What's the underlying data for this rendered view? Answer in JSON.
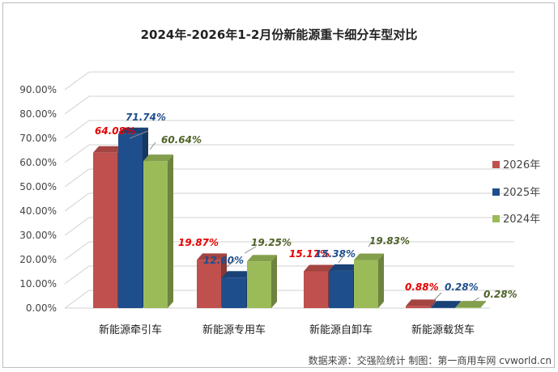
{
  "chart_data": {
    "type": "bar",
    "title": "2024年-2026年1-2月份新能源重卡细分车型对比",
    "categories": [
      "新能源牵引车",
      "新能源专用车",
      "新能源自卸车",
      "新能源载货车"
    ],
    "series": [
      {
        "name": "2026年",
        "values": [
          64.08,
          19.87,
          15.17,
          0.88
        ],
        "labels": [
          "64.08%",
          "19.87%",
          "15.17%",
          "0.88%"
        ],
        "color": "#c0504d",
        "label_color": "#e60000"
      },
      {
        "name": "2025年",
        "values": [
          71.74,
          12.6,
          15.38,
          0.28
        ],
        "labels": [
          "71.74%",
          "12.60%",
          "15.38%",
          "0.28%"
        ],
        "color": "#1f4e8c",
        "label_color": "#1f4e8c"
      },
      {
        "name": "2024年",
        "values": [
          60.64,
          19.25,
          19.83,
          0.28
        ],
        "labels": [
          "60.64%",
          "19.25%",
          "19.83%",
          "0.28%"
        ],
        "color": "#9bbb59",
        "label_color": "#4f6228"
      }
    ],
    "ylim": [
      0,
      90
    ],
    "yticks": [
      "0.00%",
      "10.00%",
      "20.00%",
      "30.00%",
      "40.00%",
      "50.00%",
      "60.00%",
      "70.00%",
      "80.00%",
      "90.00%"
    ],
    "grid": true,
    "legend": "right"
  },
  "source": "数据来源：交强险统计  制图：第一商用车网 cvworld.cn"
}
